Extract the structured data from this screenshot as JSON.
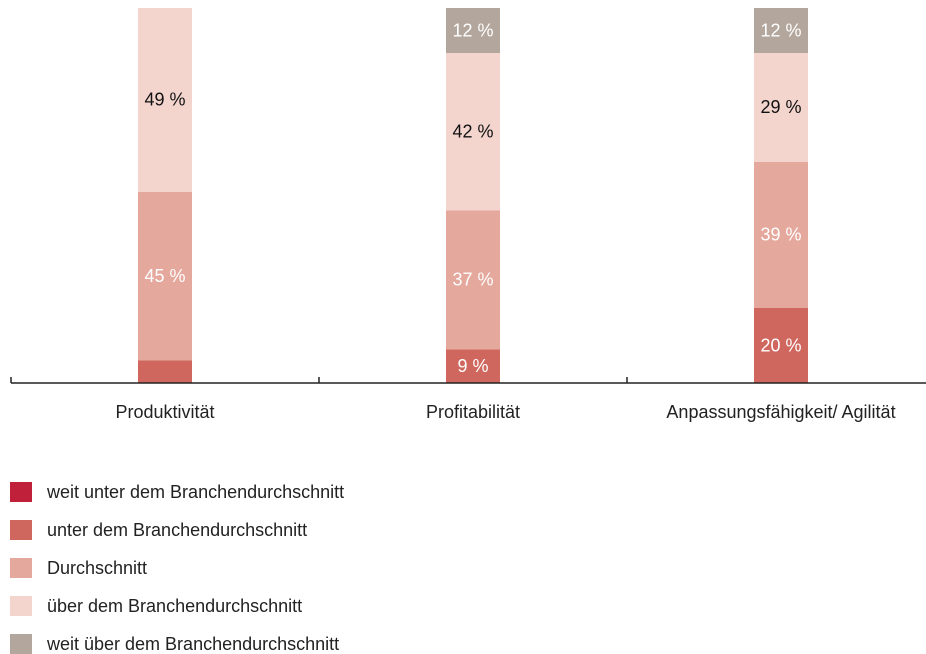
{
  "chart_data": {
    "type": "stacked_bar",
    "categories": [
      "Produktivität",
      "Profitabilität",
      "Anpassungsfähigkeit/ Agilität"
    ],
    "series": [
      {
        "name": "weit unter dem Branchendurchschnitt",
        "color": "#c0203a",
        "values": [
          0,
          0,
          0
        ],
        "value_labels": [
          null,
          null,
          null
        ]
      },
      {
        "name": "unter dem Branchendurchschnitt",
        "color": "#d0675e",
        "values": [
          6,
          9,
          20
        ],
        "value_labels": [
          null,
          "9 %",
          "20 %"
        ]
      },
      {
        "name": "Durchschnitt",
        "color": "#e5a89d",
        "values": [
          45,
          37,
          39
        ],
        "value_labels": [
          "45 %",
          "37 %",
          "39 %"
        ]
      },
      {
        "name": "über dem Branchendurchschnitt",
        "color": "#f3d5ce",
        "values": [
          49,
          42,
          29
        ],
        "value_labels": [
          "49 %",
          "42 %",
          "29 %"
        ]
      },
      {
        "name": "weit über dem Branchendurchschnitt",
        "color": "#b3a69c",
        "values": [
          0,
          12,
          12
        ],
        "value_labels": [
          null,
          "12 %",
          "12 %"
        ]
      }
    ],
    "ylim": [
      0,
      100
    ]
  }
}
